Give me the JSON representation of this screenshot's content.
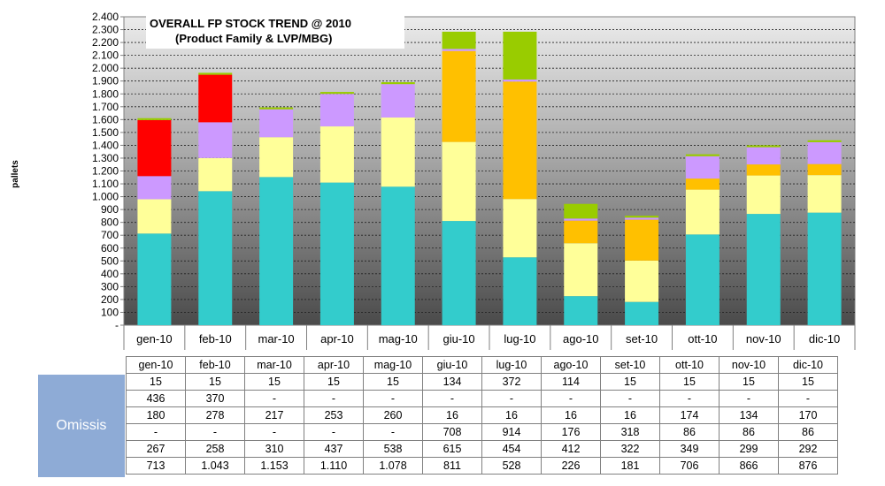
{
  "chart_data": {
    "type": "bar",
    "stacked": true,
    "title": "OVERALL FP STOCK TREND @ 2010",
    "subtitle": "(Product Family & LVP/MBG)",
    "ylabel": "pallets",
    "ylim": [
      0,
      2400
    ],
    "ytick_step": 100,
    "yticks": [
      "-",
      "100",
      "200",
      "300",
      "400",
      "500",
      "600",
      "700",
      "800",
      "900",
      "1.000",
      "1.100",
      "1.200",
      "1.300",
      "1.400",
      "1.500",
      "1.600",
      "1.700",
      "1.800",
      "1.900",
      "2.000",
      "2.100",
      "2.200",
      "2.300",
      "2.400"
    ],
    "categories": [
      "gen-10",
      "feb-10",
      "mar-10",
      "apr-10",
      "mag-10",
      "giu-10",
      "lug-10",
      "ago-10",
      "set-10",
      "ott-10",
      "nov-10",
      "dic-10"
    ],
    "grid": true,
    "series": [
      {
        "color": "#33cccc",
        "values": [
          713,
          1043,
          1153,
          1110,
          1078,
          811,
          528,
          226,
          181,
          706,
          866,
          876
        ]
      },
      {
        "color": "#ffff99",
        "values": [
          267,
          258,
          310,
          437,
          538,
          615,
          454,
          412,
          322,
          349,
          299,
          292
        ]
      },
      {
        "color": "#ffc000",
        "values": [
          0,
          0,
          0,
          0,
          0,
          708,
          914,
          176,
          318,
          86,
          86,
          86
        ]
      },
      {
        "color": "#cc99ff",
        "values": [
          180,
          278,
          217,
          253,
          260,
          16,
          16,
          16,
          16,
          174,
          134,
          170
        ]
      },
      {
        "color": "#ff0000",
        "values": [
          436,
          370,
          0,
          0,
          0,
          0,
          0,
          0,
          0,
          0,
          0,
          0
        ]
      },
      {
        "color": "#99cc00",
        "values": [
          15,
          15,
          15,
          15,
          15,
          134,
          372,
          114,
          15,
          15,
          15,
          15
        ]
      }
    ]
  },
  "table": {
    "side_label": "Omissis",
    "header": [
      "gen-10",
      "feb-10",
      "mar-10",
      "apr-10",
      "mag-10",
      "giu-10",
      "lug-10",
      "ago-10",
      "set-10",
      "ott-10",
      "nov-10",
      "dic-10"
    ],
    "rows": [
      [
        "15",
        "15",
        "15",
        "15",
        "15",
        "134",
        "372",
        "114",
        "15",
        "15",
        "15",
        "15"
      ],
      [
        "436",
        "370",
        "-",
        "-",
        "-",
        "-",
        "-",
        "-",
        "-",
        "-",
        "-",
        "-"
      ],
      [
        "180",
        "278",
        "217",
        "253",
        "260",
        "16",
        "16",
        "16",
        "16",
        "174",
        "134",
        "170"
      ],
      [
        "-",
        "-",
        "-",
        "-",
        "-",
        "708",
        "914",
        "176",
        "318",
        "86",
        "86",
        "86"
      ],
      [
        "267",
        "258",
        "310",
        "437",
        "538",
        "615",
        "454",
        "412",
        "322",
        "349",
        "299",
        "292"
      ],
      [
        "713",
        "1.043",
        "1.153",
        "1.110",
        "1.078",
        "811",
        "528",
        "226",
        "181",
        "706",
        "866",
        "876"
      ]
    ]
  }
}
